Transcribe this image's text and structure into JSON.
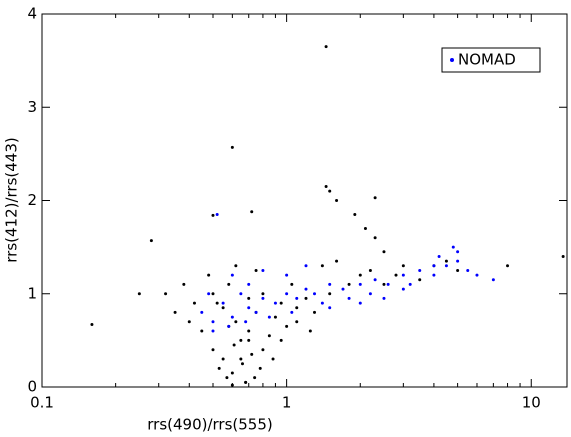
{
  "chart_data": {
    "type": "scatter",
    "x_label": "rrs(490)/rrs(555)",
    "y_label": "rrs(412)/rrs(443)",
    "xscale": "log",
    "xlim": [
      0.1,
      14
    ],
    "ylim": [
      0,
      4
    ],
    "xticks": [
      0.1,
      1,
      10
    ],
    "xminorticks": [
      0.2,
      0.3,
      0.4,
      0.5,
      0.6,
      0.7,
      0.8,
      0.9,
      2,
      3,
      4,
      5,
      6,
      7,
      8,
      9
    ],
    "yticks": [
      0,
      1,
      2,
      3,
      4
    ],
    "legend": "upper right",
    "series": [
      {
        "color": "#000000",
        "x": [
          0.45,
          0.5,
          0.52,
          0.55,
          0.58,
          0.6,
          0.62,
          0.65,
          0.68,
          0.7,
          0.72,
          0.75,
          0.78,
          0.8,
          0.85,
          0.9,
          0.95,
          1.0,
          1.05,
          1.1,
          1.2,
          1.3,
          1.4,
          1.5,
          1.6,
          1.8,
          2.0,
          2.2,
          2.5,
          2.8,
          3.0,
          3.5,
          4.0,
          4.5,
          5.0,
          0.48,
          0.53,
          0.57,
          0.61,
          0.66,
          0.7,
          0.74,
          0.8,
          0.88,
          0.95,
          1.1,
          1.25,
          0.6,
          0.65,
          0.7,
          0.55,
          0.5,
          0.62,
          0.75,
          0.68,
          0.58,
          0.42,
          0.4,
          0.38,
          0.35,
          0.32,
          1.45,
          0.6,
          1.45,
          1.5,
          1.6,
          1.9,
          2.1,
          2.3,
          2.5,
          0.28,
          0.5,
          0.72,
          0.16,
          0.25,
          2.3,
          13.5,
          8
        ],
        "values": [
          0.6,
          0.4,
          0.9,
          0.3,
          1.1,
          0.15,
          0.7,
          0.5,
          0.05,
          0.95,
          0.35,
          0.8,
          0.2,
          1.0,
          0.55,
          0.75,
          0.9,
          0.65,
          1.1,
          0.85,
          0.95,
          0.8,
          1.3,
          1.0,
          1.35,
          1.1,
          1.2,
          1.25,
          1.1,
          1.2,
          1.3,
          1.15,
          1.3,
          1.35,
          1.25,
          1.2,
          0.2,
          0.1,
          0.45,
          0.25,
          0.6,
          0.1,
          0.4,
          0.3,
          0.5,
          0.7,
          0.6,
          0.02,
          0.3,
          0.5,
          0.85,
          1.0,
          1.3,
          1.25,
          0.05,
          0.65,
          0.9,
          0.7,
          1.1,
          0.8,
          1.0,
          3.65,
          2.57,
          2.15,
          2.1,
          2.0,
          1.85,
          1.7,
          1.6,
          1.45,
          1.57,
          1.84,
          1.88,
          0.67,
          1.0,
          2.03,
          1.4,
          1.3
        ]
      },
      {
        "name": "NOMAD",
        "color": "#0000ff",
        "x": [
          0.45,
          0.5,
          0.55,
          0.6,
          0.65,
          0.7,
          0.75,
          0.8,
          0.9,
          1.0,
          1.1,
          1.2,
          1.3,
          1.5,
          1.7,
          2.0,
          2.3,
          2.6,
          3.0,
          3.5,
          4.0,
          4.5,
          5.0,
          5.5,
          6.0,
          7.0,
          0.5,
          0.6,
          0.7,
          0.8,
          1.0,
          1.2,
          1.5,
          2.0,
          2.5,
          3.0,
          4.0,
          5.0,
          0.48,
          0.58,
          0.68,
          0.85,
          1.05,
          1.4,
          1.8,
          2.2,
          3.2,
          4.2,
          4.8,
          0.52
        ],
        "values": [
          0.8,
          0.7,
          0.9,
          0.75,
          1.0,
          0.85,
          0.8,
          0.95,
          0.9,
          1.0,
          0.95,
          1.05,
          1.0,
          1.1,
          1.05,
          1.1,
          1.15,
          1.1,
          1.2,
          1.25,
          1.3,
          1.3,
          1.35,
          1.25,
          1.2,
          1.15,
          0.6,
          1.2,
          1.1,
          1.25,
          1.2,
          1.3,
          0.85,
          0.9,
          0.95,
          1.05,
          1.2,
          1.45,
          1.0,
          0.65,
          0.7,
          0.75,
          0.8,
          0.9,
          0.95,
          1.0,
          1.1,
          1.4,
          1.5,
          1.85
        ]
      }
    ]
  }
}
